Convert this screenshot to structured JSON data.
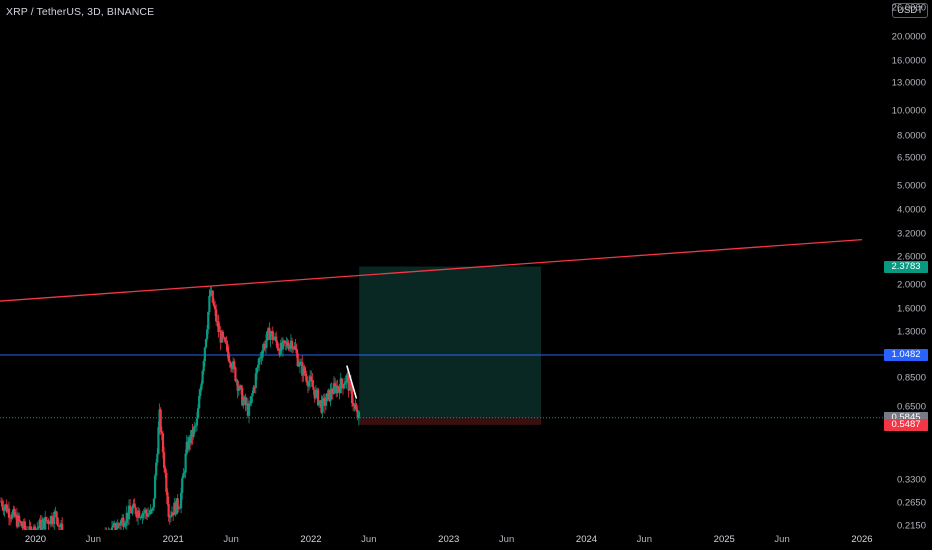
{
  "header": {
    "title": "XRP / TetherUS, 3D, BINANCE",
    "currency_button": "USDT"
  },
  "price_axis": {
    "ticks": [
      "26.0000",
      "20.0000",
      "16.0000",
      "13.0000",
      "10.0000",
      "8.0000",
      "6.5000",
      "5.0000",
      "4.0000",
      "3.2000",
      "2.6000",
      "2.0000",
      "1.6000",
      "1.3000",
      "0.8500",
      "0.6500",
      "0.3300",
      "0.2650",
      "0.2150"
    ],
    "tick_values": [
      26,
      20,
      16,
      13,
      10,
      8,
      6.5,
      5,
      4,
      3.2,
      2.6,
      2.0,
      1.6,
      1.3,
      0.85,
      0.65,
      0.33,
      0.265,
      0.215
    ],
    "badges": [
      {
        "label": "2.3783",
        "value": 2.3783,
        "color": "#089981",
        "name": "target-price-badge"
      },
      {
        "label": "1.0482",
        "value": 1.0482,
        "color": "#2962ff",
        "name": "horizontal-line-price-badge"
      },
      {
        "label": "0.5857",
        "value": 0.5857,
        "color": "#089981",
        "name": "last-price-badge"
      },
      {
        "label": "2d 17h",
        "value": 0.558,
        "color": "#089981",
        "name": "countdown-badge"
      },
      {
        "label": "0.5845",
        "value": 0.5845,
        "color": "#787b86",
        "name": "entry-price-badge"
      },
      {
        "label": "0.5487",
        "value": 0.5487,
        "color": "#f23645",
        "name": "stop-price-badge"
      }
    ]
  },
  "time_axis": {
    "ticks": [
      {
        "label": "2020",
        "t": 2020.0,
        "year": true
      },
      {
        "label": "Jun",
        "t": 2020.42
      },
      {
        "label": "2021",
        "t": 2021.0,
        "year": true
      },
      {
        "label": "Jun",
        "t": 2021.42
      },
      {
        "label": "2022",
        "t": 2022.0,
        "year": true
      },
      {
        "label": "Jun",
        "t": 2022.42
      },
      {
        "label": "2023",
        "t": 2023.0,
        "year": true
      },
      {
        "label": "Jun",
        "t": 2023.42
      },
      {
        "label": "2024",
        "t": 2024.0,
        "year": true
      },
      {
        "label": "Jun",
        "t": 2024.42
      },
      {
        "label": "2025",
        "t": 2025.0,
        "year": true
      },
      {
        "label": "Jun",
        "t": 2025.42
      },
      {
        "label": "2026",
        "t": 2026.0,
        "year": true
      }
    ]
  },
  "chart_data": {
    "type": "candlestick",
    "symbol": "XRP / TetherUS",
    "interval": "3D",
    "exchange": "BINANCE",
    "scale": "log",
    "price_keypoints": [
      [
        2019.75,
        0.27
      ],
      [
        2019.95,
        0.2
      ],
      [
        2020.15,
        0.24
      ],
      [
        2020.25,
        0.16
      ],
      [
        2020.5,
        0.19
      ],
      [
        2020.7,
        0.25
      ],
      [
        2020.85,
        0.24
      ],
      [
        2020.9,
        0.6
      ],
      [
        2020.97,
        0.24
      ],
      [
        2021.05,
        0.27
      ],
      [
        2021.1,
        0.45
      ],
      [
        2021.17,
        0.55
      ],
      [
        2021.27,
        1.9
      ],
      [
        2021.33,
        1.3
      ],
      [
        2021.42,
        1.0
      ],
      [
        2021.5,
        0.7
      ],
      [
        2021.55,
        0.62
      ],
      [
        2021.63,
        1.05
      ],
      [
        2021.7,
        1.3
      ],
      [
        2021.78,
        1.1
      ],
      [
        2021.86,
        1.2
      ],
      [
        2021.92,
        0.95
      ],
      [
        2022.0,
        0.8
      ],
      [
        2022.08,
        0.65
      ],
      [
        2022.15,
        0.75
      ],
      [
        2022.22,
        0.8
      ],
      [
        2022.26,
        0.85
      ],
      [
        2022.3,
        0.7
      ],
      [
        2022.33,
        0.6
      ],
      [
        2022.35,
        0.586
      ]
    ],
    "annotations": {
      "resistance_trendline": {
        "from": [
          2019.7,
          1.72
        ],
        "to": [
          2026.0,
          3.05
        ],
        "color": "#f23645"
      },
      "horizontal_line": {
        "price": 1.0482,
        "color": "#2962ff"
      },
      "long_position": {
        "t_start": 2022.35,
        "t_end": 2023.67,
        "entry": 0.5845,
        "target": 2.3783,
        "stop": 0.5487
      },
      "last_price": 0.5857
    }
  }
}
